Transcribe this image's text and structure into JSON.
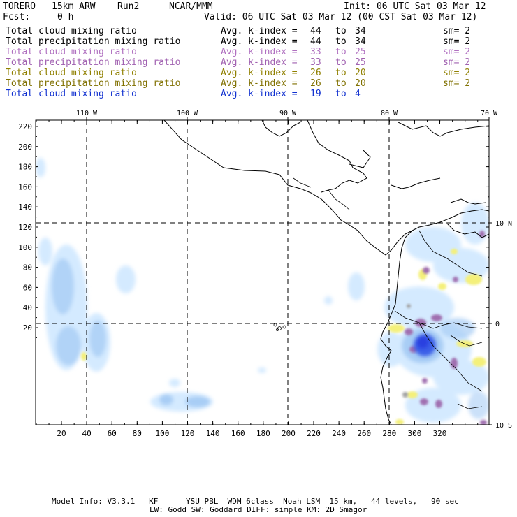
{
  "header": {
    "model": "TORERO",
    "resolution": "15km ARW",
    "run": "Run2",
    "org": "NCAR/MMM",
    "init": "Init: 06 UTC Sat 03 Mar 12",
    "fcst_label": "Fcst:",
    "fcst_value": "0 h",
    "valid": "Valid: 06 UTC Sat 03 Mar 12 (00 CST Sat 03 Mar 12)"
  },
  "legend": [
    {
      "field": "Total cloud mixing ratio",
      "avg": "Avg. k-index =",
      "k1": "44",
      "to": "to",
      "k2": "34",
      "sm": "sm= 2",
      "color": "#000000"
    },
    {
      "field": "Total precipitation mixing ratio",
      "avg": "Avg. k-index =",
      "k1": "44",
      "to": "to",
      "k2": "34",
      "sm": "sm= 2",
      "color": "#000000"
    },
    {
      "field": "Total cloud mixing ratio",
      "avg": "Avg. k-index =",
      "k1": "33",
      "to": "to",
      "k2": "25",
      "sm": "sm= 2",
      "color": "#b070c0"
    },
    {
      "field": "Total precipitation mixing ratio",
      "avg": "Avg. k-index =",
      "k1": "33",
      "to": "to",
      "k2": "25",
      "sm": "sm= 2",
      "color": "#a060b0"
    },
    {
      "field": "Total cloud mixing ratio",
      "avg": "Avg. k-index =",
      "k1": "26",
      "to": "to",
      "k2": "20",
      "sm": "sm= 2",
      "color": "#908000"
    },
    {
      "field": "Total precipitation mixing ratio",
      "avg": "Avg. k-index =",
      "k1": "26",
      "to": "to",
      "k2": "20",
      "sm": "sm= 2",
      "color": "#807000"
    },
    {
      "field": "Total cloud mixing ratio",
      "avg": "Avg. k-index =",
      "k1": "19",
      "to": "to",
      "k2": "4",
      "sm": "",
      "color": "#1030d0"
    }
  ],
  "map": {
    "lon_labels": [
      "110 W",
      "100 W",
      "90 W",
      "80 W",
      "70 W"
    ],
    "lat_labels": [
      "10 N",
      "0",
      "10 S"
    ],
    "y_ticks": [
      "220",
      "200",
      "180",
      "160",
      "140",
      "120",
      "100",
      "80",
      "60",
      "40",
      "20"
    ],
    "x_ticks": [
      "20",
      "40",
      "60",
      "80",
      "100",
      "120",
      "140",
      "160",
      "180",
      "200",
      "220",
      "240",
      "260",
      "280",
      "300",
      "320"
    ],
    "colors": {
      "cloud_light": "#d4eaff",
      "cloud_mid": "#a8cdf5",
      "cloud_dark": "#3a5ee8",
      "precip_yellow": "#f4f07a",
      "precip_purple": "#a070b0",
      "precip_gray": "#a0a0a0"
    }
  },
  "footer": {
    "line1": "Model Info: V3.3.1   KF      YSU PBL  WDM 6class  Noah LSM  15 km,   44 levels,   90 sec",
    "line2": "LW: Godd SW: Goddard DIFF: simple KM: 2D Smagor"
  }
}
